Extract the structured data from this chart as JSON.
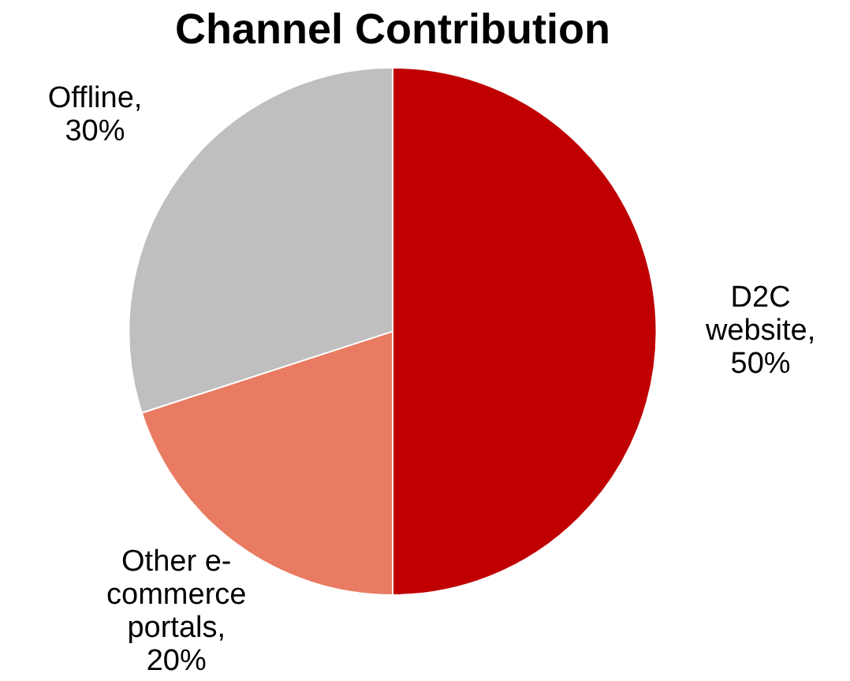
{
  "chart_data": {
    "type": "pie",
    "title": "Channel Contribution",
    "categories": [
      "D2C website",
      "Other e-commerce portals",
      "Offline"
    ],
    "values": [
      50,
      20,
      30
    ],
    "value_labels": [
      ", 50%",
      ", 20%",
      ", 30%"
    ],
    "colors": [
      "#c00000",
      "#e97b62",
      "#bfbfbf"
    ],
    "legend": false
  }
}
